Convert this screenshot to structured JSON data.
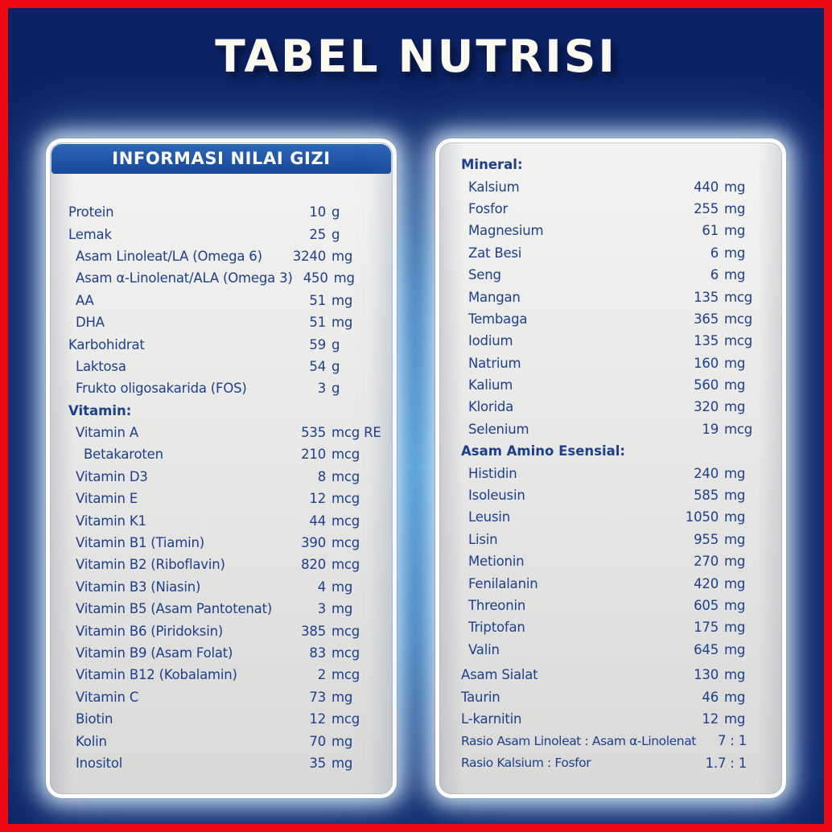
{
  "title": "TABEL NUTRISI",
  "colors": {
    "frame_red": "#ee0a12",
    "background_navy": "#0c2264",
    "glow_blue": "#2f87c9",
    "header_band_blue": "#1e55a6",
    "panel_background": "#e8e8e6",
    "panel_border": "#ffffff",
    "text_navy": "#1c3f8f",
    "title_white": "#fdfbf0"
  },
  "left_panel": {
    "header": "INFORMASI NILAI GIZI",
    "rows": [
      {
        "label": "Protein",
        "indent": 0,
        "num": "10",
        "unit": "g"
      },
      {
        "label": "Lemak",
        "indent": 0,
        "num": "25",
        "unit": "g"
      },
      {
        "label": "Asam Linoleat/LA (Omega 6)",
        "indent": 1,
        "num": "3240",
        "unit": "mg"
      },
      {
        "label": "Asam α-Linolenat/ALA (Omega 3)",
        "indent": 1,
        "num": "450",
        "unit": "mg"
      },
      {
        "label": "AA",
        "indent": 1,
        "num": "51",
        "unit": "mg"
      },
      {
        "label": "DHA",
        "indent": 1,
        "num": "51",
        "unit": "mg"
      },
      {
        "label": "Karbohidrat",
        "indent": 0,
        "num": "59",
        "unit": "g"
      },
      {
        "label": "Laktosa",
        "indent": 1,
        "num": "54",
        "unit": "g"
      },
      {
        "label": "Frukto oligosakarida (FOS)",
        "indent": 1,
        "num": "3",
        "unit": "g"
      },
      {
        "label": "Vitamin:",
        "indent": 0,
        "bold": true
      },
      {
        "label": "Vitamin A",
        "indent": 1,
        "num": "535",
        "unit": "mcg RE"
      },
      {
        "label": "Betakaroten",
        "indent": 2,
        "num": "210",
        "unit": "mcg"
      },
      {
        "label": "Vitamin D3",
        "indent": 1,
        "num": "8",
        "unit": "mcg"
      },
      {
        "label": "Vitamin E",
        "indent": 1,
        "num": "12",
        "unit": "mcg"
      },
      {
        "label": "Vitamin K1",
        "indent": 1,
        "num": "44",
        "unit": "mcg"
      },
      {
        "label": "Vitamin B1 (Tiamin)",
        "indent": 1,
        "num": "390",
        "unit": "mcg"
      },
      {
        "label": "Vitamin B2 (Riboflavin)",
        "indent": 1,
        "num": "820",
        "unit": "mcg"
      },
      {
        "label": "Vitamin B3 (Niasin)",
        "indent": 1,
        "num": "4",
        "unit": "mg"
      },
      {
        "label": "Vitamin B5 (Asam Pantotenat)",
        "indent": 1,
        "num": "3",
        "unit": "mg"
      },
      {
        "label": "Vitamin B6 (Piridoksin)",
        "indent": 1,
        "num": "385",
        "unit": "mcg"
      },
      {
        "label": "Vitamin B9 (Asam Folat)",
        "indent": 1,
        "num": "83",
        "unit": "mcg"
      },
      {
        "label": "Vitamin B12 (Kobalamin)",
        "indent": 1,
        "num": "2",
        "unit": "mcg"
      },
      {
        "label": "Vitamin C",
        "indent": 1,
        "num": "73",
        "unit": "mg"
      },
      {
        "label": "Biotin",
        "indent": 1,
        "num": "12",
        "unit": "mcg"
      },
      {
        "label": "Kolin",
        "indent": 1,
        "num": "70",
        "unit": "mg"
      },
      {
        "label": "Inositol",
        "indent": 1,
        "num": "35",
        "unit": "mg"
      }
    ]
  },
  "right_panel": {
    "rows": [
      {
        "label": "Mineral:",
        "indent": 0,
        "bold": true
      },
      {
        "label": "Kalsium",
        "indent": 1,
        "num": "440",
        "unit": "mg"
      },
      {
        "label": "Fosfor",
        "indent": 1,
        "num": "255",
        "unit": "mg"
      },
      {
        "label": "Magnesium",
        "indent": 1,
        "num": "61",
        "unit": "mg"
      },
      {
        "label": "Zat Besi",
        "indent": 1,
        "num": "6",
        "unit": "mg"
      },
      {
        "label": "Seng",
        "indent": 1,
        "num": "6",
        "unit": "mg"
      },
      {
        "label": "Mangan",
        "indent": 1,
        "num": "135",
        "unit": "mcg"
      },
      {
        "label": "Tembaga",
        "indent": 1,
        "num": "365",
        "unit": "mcg"
      },
      {
        "label": "Iodium",
        "indent": 1,
        "num": "135",
        "unit": "mcg"
      },
      {
        "label": "Natrium",
        "indent": 1,
        "num": "160",
        "unit": "mg"
      },
      {
        "label": "Kalium",
        "indent": 1,
        "num": "560",
        "unit": "mg"
      },
      {
        "label": "Klorida",
        "indent": 1,
        "num": "320",
        "unit": "mg"
      },
      {
        "label": "Selenium",
        "indent": 1,
        "num": "19",
        "unit": "mcg"
      },
      {
        "label": "Asam Amino Esensial:",
        "indent": 0,
        "bold": true
      },
      {
        "label": "Histidin",
        "indent": 1,
        "num": "240",
        "unit": "mg"
      },
      {
        "label": "Isoleusin",
        "indent": 1,
        "num": "585",
        "unit": "mg"
      },
      {
        "label": "Leusin",
        "indent": 1,
        "num": "1050",
        "unit": "mg"
      },
      {
        "label": "Lisin",
        "indent": 1,
        "num": "955",
        "unit": "mg"
      },
      {
        "label": "Metionin",
        "indent": 1,
        "num": "270",
        "unit": "mg"
      },
      {
        "label": "Fenilalanin",
        "indent": 1,
        "num": "420",
        "unit": "mg"
      },
      {
        "label": "Threonin",
        "indent": 1,
        "num": "605",
        "unit": "mg"
      },
      {
        "label": "Triptofan",
        "indent": 1,
        "num": "175",
        "unit": "mg"
      },
      {
        "label": "Valin",
        "indent": 1,
        "num": "645",
        "unit": "mg"
      },
      {
        "label": "Asam Sialat",
        "indent": 0,
        "num": "130",
        "unit": "mg",
        "space_before": true
      },
      {
        "label": "Taurin",
        "indent": 0,
        "num": "46",
        "unit": "mg"
      },
      {
        "label": "L-karnitin",
        "indent": 0,
        "num": "12",
        "unit": "mg"
      },
      {
        "label": "Rasio Asam Linoleat : Asam α-Linolenat",
        "indent": 0,
        "ratio": true,
        "value": "7 : 1"
      },
      {
        "label": "Rasio Kalsium : Fosfor",
        "indent": 0,
        "ratio": true,
        "value": "1.7 : 1"
      }
    ]
  }
}
